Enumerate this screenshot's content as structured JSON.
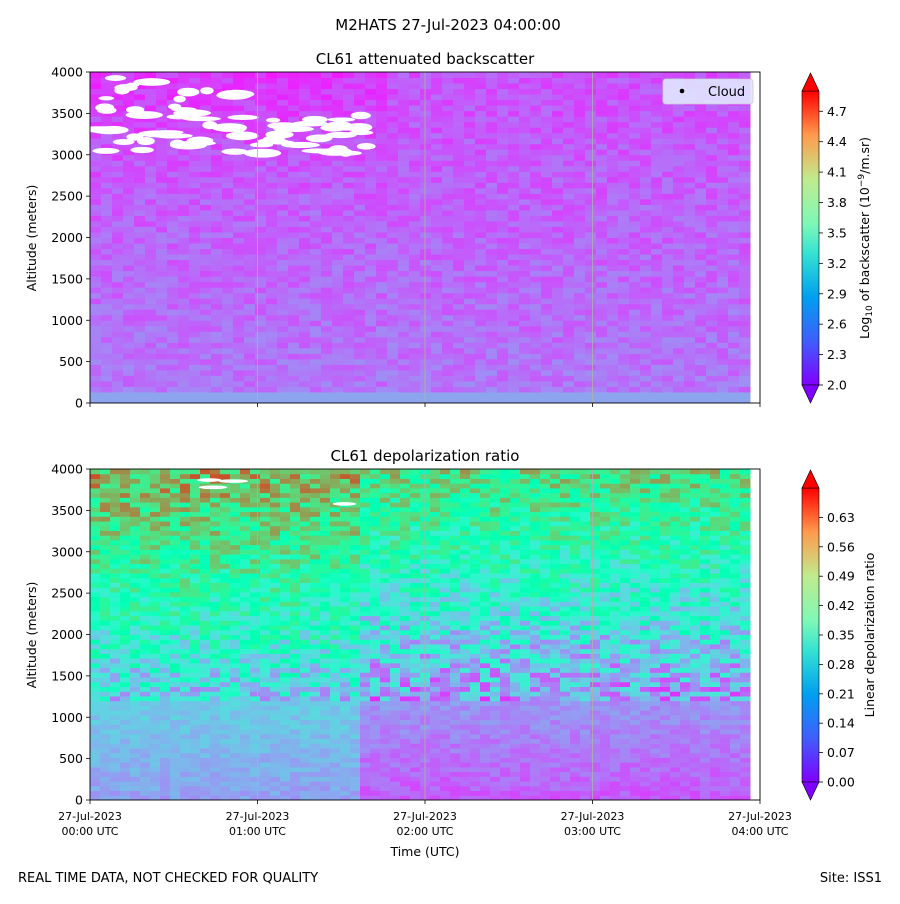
{
  "figure": {
    "suptitle": "M2HATS 27-Jul-2023 04:00:00",
    "footer_left": "REAL TIME DATA, NOT CHECKED FOR QUALITY",
    "footer_right": "Site: ISS1"
  },
  "chart_data": [
    {
      "type": "heatmap",
      "title": "CL61 attenuated backscatter",
      "ylabel": "Altitude (meters)",
      "xlabel": "",
      "xlim": [
        "2023-07-27 00:00",
        "2023-07-27 04:00"
      ],
      "ylim": [
        0,
        4000
      ],
      "yticks": [
        "0",
        "500",
        "1000",
        "1500",
        "2000",
        "2500",
        "3000",
        "3500",
        "4000"
      ],
      "xticks": [],
      "grid": "vertical at hourly ticks",
      "legend": {
        "position": "top-right",
        "entries": [
          {
            "label": "Cloud",
            "marker": "dot"
          }
        ]
      },
      "colorbar": {
        "label_parts": [
          "Log",
          "10",
          " of backscatter (10",
          "−9",
          "/m.sr)"
        ],
        "range": [
          2.0,
          4.9
        ],
        "ticks": [
          "2.0",
          "2.3",
          "2.6",
          "2.9",
          "3.2",
          "3.5",
          "3.8",
          "4.1",
          "4.4",
          "4.7"
        ],
        "colormap": "rainbow",
        "extend": "both"
      },
      "field_description": {
        "surface_value": 2.55,
        "mid_value": 2.45,
        "upper_value": 2.25,
        "cloud_free_gaps_above_m": 3000
      }
    },
    {
      "type": "heatmap",
      "title": "CL61 depolarization ratio",
      "ylabel": "Altitude (meters)",
      "xlabel": "Time (UTC)",
      "xlim": [
        "2023-07-27 00:00",
        "2023-07-27 04:00"
      ],
      "ylim": [
        0,
        4000
      ],
      "yticks": [
        "0",
        "500",
        "1000",
        "1500",
        "2000",
        "2500",
        "3000",
        "3500",
        "4000"
      ],
      "xticks": [
        [
          "27-Jul-2023",
          "00:00 UTC"
        ],
        [
          "27-Jul-2023",
          "01:00 UTC"
        ],
        [
          "27-Jul-2023",
          "02:00 UTC"
        ],
        [
          "27-Jul-2023",
          "03:00 UTC"
        ],
        [
          "27-Jul-2023",
          "04:00 UTC"
        ]
      ],
      "grid": "vertical at hourly ticks",
      "colorbar": {
        "label": "Linear depolarization ratio",
        "range": [
          0.0,
          0.7
        ],
        "ticks": [
          "0.00",
          "0.07",
          "0.14",
          "0.21",
          "0.28",
          "0.35",
          "0.42",
          "0.49",
          "0.56",
          "0.63"
        ],
        "colormap": "rainbow",
        "extend": "both"
      },
      "field_description": {
        "surface_value": 0.1,
        "value_at_1500m": 0.24,
        "value_at_2500m": 0.34,
        "value_at_3500m": 0.5
      }
    }
  ]
}
